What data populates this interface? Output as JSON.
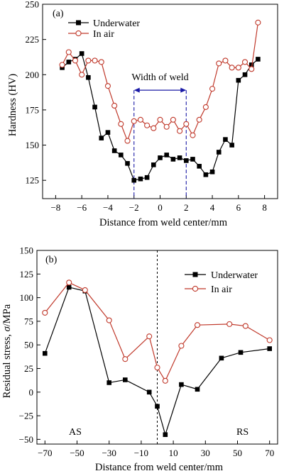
{
  "chart_data": [
    {
      "type": "line",
      "panel_label": "(a)",
      "xlabel": "Distance from weld center/mm",
      "ylabel": "Hardness (HV)",
      "xlim": [
        -9,
        9
      ],
      "ylim": [
        112,
        250
      ],
      "xticks": [
        -8,
        -6,
        -4,
        -2,
        0,
        2,
        4,
        6,
        8
      ],
      "yticks": [
        125,
        150,
        175,
        200,
        225,
        250
      ],
      "legend_position": "top-left",
      "grid": false,
      "annotation": {
        "text": "Width of weld",
        "from": -2,
        "to": 2,
        "y": 189
      },
      "series": [
        {
          "name": "Underwater",
          "color": "#000000",
          "marker": "filled-square",
          "x": [
            -7.5,
            -7,
            -6.5,
            -6,
            -5.5,
            -5,
            -4.5,
            -4,
            -3.5,
            -3,
            -2.5,
            -2,
            -1.5,
            -1,
            -0.5,
            0,
            0.5,
            1,
            1.5,
            2,
            2.5,
            3,
            3.5,
            4,
            4.5,
            5,
            5.5,
            6,
            6.5,
            7,
            7.5
          ],
          "y": [
            205,
            209,
            211,
            215,
            198,
            177,
            155,
            159,
            146,
            143,
            137,
            125,
            126,
            127,
            136,
            141,
            143,
            140,
            141,
            139,
            140,
            135,
            129,
            131,
            145,
            154,
            150,
            196,
            200,
            207,
            211
          ]
        },
        {
          "name": "In air",
          "color": "#c0392b",
          "marker": "open-circle",
          "x": [
            -7.5,
            -7,
            -6.5,
            -6,
            -5.5,
            -5,
            -4.5,
            -4,
            -3.5,
            -3,
            -2.5,
            -2,
            -1.5,
            -1,
            -0.5,
            0,
            0.5,
            1,
            1.5,
            2,
            2.5,
            3,
            3.5,
            4,
            4.5,
            5,
            5.5,
            6,
            6.5,
            7,
            7.5
          ],
          "y": [
            207,
            216,
            210,
            200,
            210,
            210,
            209,
            192,
            178,
            165,
            153,
            167,
            168,
            164,
            162,
            168,
            163,
            168,
            160,
            165,
            157,
            168,
            177,
            190,
            208,
            210,
            205,
            205,
            209,
            204,
            237
          ]
        }
      ]
    },
    {
      "type": "line",
      "panel_label": "(b)",
      "xlabel": "Distance from weld center/mm",
      "ylabel_prefix": "Residual stress, ",
      "ylabel_symbol": "σ",
      "ylabel_suffix": "/MPa",
      "xlim": [
        -75,
        75
      ],
      "ylim": [
        -55,
        150
      ],
      "xticks": [
        -70,
        -50,
        -30,
        -10,
        10,
        30,
        50,
        70
      ],
      "yticks": [
        -50,
        -25,
        0,
        25,
        50,
        75,
        100,
        125,
        150
      ],
      "legend_position": "top-right",
      "grid": false,
      "center_line_x": 0,
      "annotations": [
        {
          "text": "AS",
          "side": "left"
        },
        {
          "text": "RS",
          "side": "right"
        }
      ],
      "series": [
        {
          "name": "Underwater",
          "color": "#000000",
          "marker": "filled-square",
          "x": [
            -70,
            -55,
            -45,
            -30,
            -20,
            -5,
            0,
            5,
            15,
            25,
            40,
            52,
            70
          ],
          "y": [
            41,
            111,
            107,
            10,
            13,
            0,
            -15,
            -45,
            8,
            3,
            36,
            42,
            46
          ]
        },
        {
          "name": "In air",
          "color": "#c0392b",
          "marker": "open-circle",
          "x": [
            -70,
            -55,
            -45,
            -30,
            -20,
            -5,
            0,
            5,
            15,
            25,
            45,
            55,
            70
          ],
          "y": [
            84,
            116,
            108,
            76,
            35,
            59,
            26,
            12,
            49,
            71,
            72,
            70,
            55
          ]
        }
      ]
    }
  ]
}
